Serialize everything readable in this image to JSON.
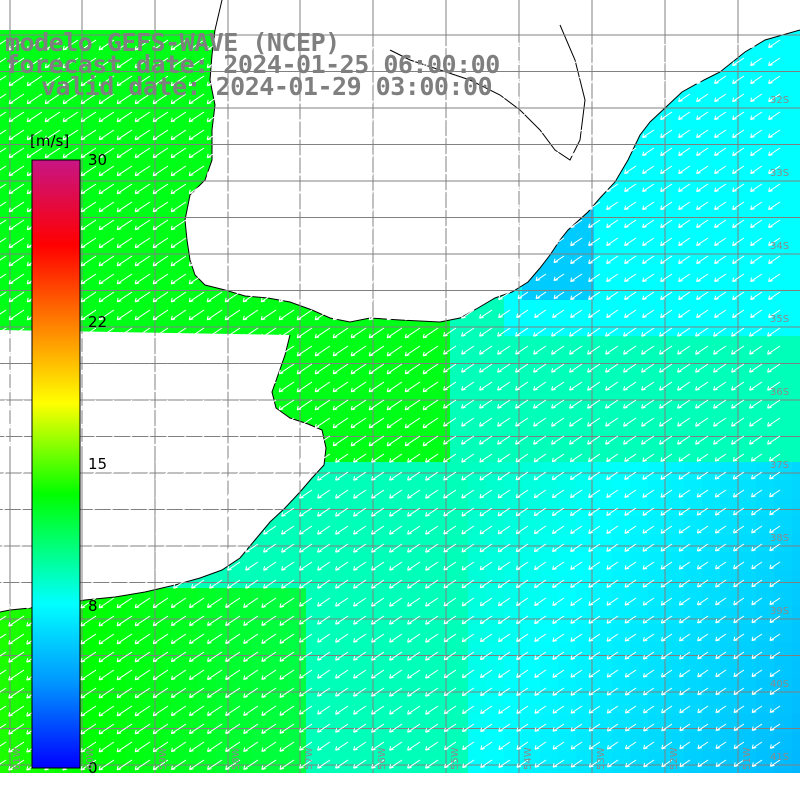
{
  "title": {
    "line1": "modelo GEFS-WAVE (NCEP)",
    "line2": "forecast date: 2024-01-25 06:00:00",
    "line3": "valid date: 2024-01-29 03:00:00"
  },
  "legend": {
    "units": "[m/s]",
    "min": 0,
    "max": 30,
    "ticks": [
      {
        "value": 30,
        "label": "30"
      },
      {
        "value": 22,
        "label": "22"
      },
      {
        "value": 15,
        "label": "15"
      },
      {
        "value": 8,
        "label": "8"
      },
      {
        "value": 0,
        "label": "0"
      }
    ],
    "colors": [
      "#0000ff",
      "#0096ff",
      "#00ffff",
      "#00ff00",
      "#ffff00",
      "#ff8000",
      "#ff0000",
      "#c71585"
    ]
  },
  "map": {
    "variable": "wind speed and direction",
    "lat_labels": [
      "32S",
      "33S",
      "34S",
      "35S",
      "36S",
      "37S",
      "38S",
      "39S",
      "40S",
      "41S"
    ],
    "lon_labels": [
      "61W",
      "60W",
      "59W",
      "58W",
      "57W",
      "56W",
      "55W",
      "54W",
      "53W",
      "52W",
      "51W"
    ],
    "wind_direction_from": "NE",
    "land_color": "#ffffff",
    "coastline_color": "#000000",
    "grid_color": "#808080"
  }
}
